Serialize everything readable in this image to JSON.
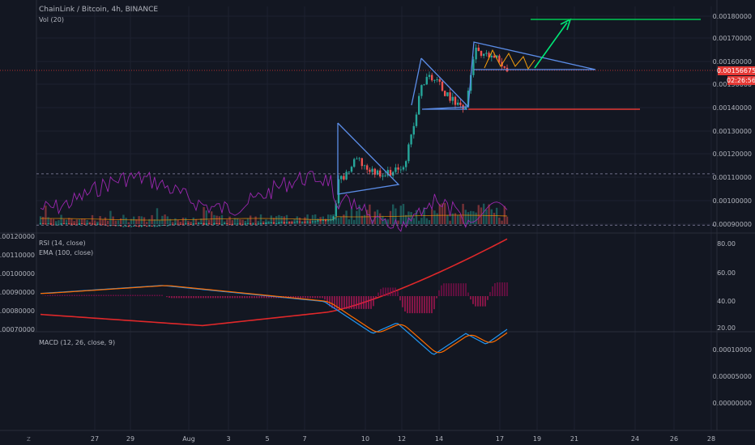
{
  "header": {
    "title": "ChainLink / Bitcoin, 4h, BINANCE",
    "volume_label": "Vol (20)"
  },
  "price_axis": {
    "ticks": [
      "0.00180000",
      "0.00170000",
      "0.00160000",
      "0.00150000",
      "0.00140000",
      "0.00130000",
      "0.00120000",
      "0.00110000",
      "0.00100000",
      "0.00090000"
    ],
    "current_price": "0.00156675",
    "countdown": "02:26:56"
  },
  "rsi_panel": {
    "label_rsi": "RSI (14, close)",
    "label_ema": "EMA (100, close)",
    "right_ticks": [
      "80.00",
      "60.00",
      "40.00",
      "20.00"
    ],
    "left_ticks": [
      "0.00120000",
      "0.00110000",
      "0.00100000",
      "0.00090000",
      "0.00080000",
      "0.00070000"
    ]
  },
  "macd_panel": {
    "label": "MACD (12, 26, close, 9)",
    "right_ticks": [
      "0.00010000",
      "0.00005000",
      "0.00000000"
    ]
  },
  "time_axis": {
    "ticks": [
      "27",
      "29",
      "Aug",
      "3",
      "5",
      "7",
      "10",
      "12",
      "14",
      "17",
      "19",
      "21",
      "24",
      "26",
      "28"
    ]
  },
  "colors": {
    "bg": "#131722",
    "up": "#26a69a",
    "down": "#ef5350",
    "pattern": "#5b8de8",
    "green": "#4caf50",
    "red": "#e53935",
    "ema": "#e0282a",
    "rsi": "#9c27b0",
    "macd": "#2196f3",
    "signal": "#ff6d00"
  },
  "chart_data": {
    "type": "line",
    "title": "ChainLink / Bitcoin, 4h, BINANCE",
    "y_unit": "BTC",
    "price_range": [
      0.00085,
      0.00182
    ],
    "close_price_path": {
      "x": [
        "Jul 26",
        "Jul 27",
        "Jul 29",
        "Aug 1",
        "Aug 3",
        "Aug 5",
        "Aug 7",
        "Aug 8",
        "Aug 9",
        "Aug 10",
        "Aug 11",
        "Aug 12",
        "Aug 13",
        "Aug 14",
        "Aug 15",
        "Aug 16",
        "Aug 17"
      ],
      "y": [
        0.0009,
        0.0009,
        0.00089,
        0.0009,
        0.0009,
        0.00091,
        0.00091,
        0.00092,
        0.00113,
        0.00118,
        0.00114,
        0.00132,
        0.00155,
        0.00142,
        0.00166,
        0.00163,
        0.00156675
      ]
    },
    "annotations": [
      "descending triangle Aug 9-11",
      "bull flag Aug 13-14",
      "symmetrical triangle Aug 15-18",
      "target line at 0.00178",
      "support line at 0.00140"
    ],
    "rsi_ylim": [
      20,
      85
    ],
    "rsi_bands": [
      30,
      70
    ],
    "macd_ylim": [
      -3e-05,
      0.00012
    ]
  }
}
